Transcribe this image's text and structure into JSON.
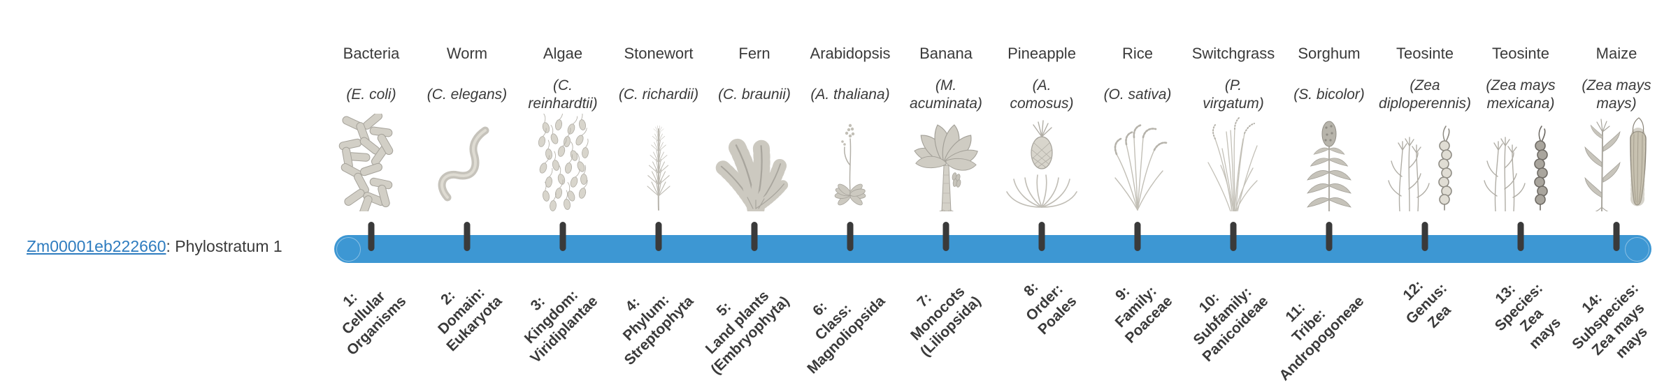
{
  "gene_label": {
    "id": "Zm00001eb222660",
    "rest": ": Phylostratum 1"
  },
  "colors": {
    "bar": "#3d97d3",
    "tick": "#3a3a3a",
    "link": "#2e7cbf",
    "text": "#3a3a3a"
  },
  "timeline": {
    "tick_count": 14
  },
  "organisms": [
    {
      "name": "Bacteria",
      "sci": "(E. coli)",
      "stratum": "1:\nCellular\nOrganisms",
      "icon": "#icon-bacteria",
      "image_name": "bacteria-illustration"
    },
    {
      "name": "Worm",
      "sci": "(C. elegans)",
      "stratum": "2:\nDomain:\nEukaryota",
      "icon": "#icon-worm",
      "image_name": "worm-illustration"
    },
    {
      "name": "Algae",
      "sci": "(C.\nreinhardtii)",
      "stratum": "3:\nKingdom:\nViridiplantae",
      "icon": "#icon-algae",
      "image_name": "algae-illustration"
    },
    {
      "name": "Stonewort",
      "sci": "(C. richardii)",
      "stratum": "4:\nPhylum:\nStreptophyta",
      "icon": "#icon-stonewort",
      "image_name": "stonewort-illustration"
    },
    {
      "name": "Fern",
      "sci": "(C. braunii)",
      "stratum": "5:\nLand plants\n(Embryophyta)",
      "icon": "#icon-fern",
      "image_name": "fern-illustration"
    },
    {
      "name": "Arabidopsis",
      "sci": "(A. thaliana)",
      "stratum": "6:\nClass:\nMagnoliopsida",
      "icon": "#icon-arabidopsis",
      "image_name": "arabidopsis-illustration"
    },
    {
      "name": "Banana",
      "sci": "(M.\nacuminata)",
      "stratum": "7:\nMonocots\n(Liliopsida)",
      "icon": "#icon-banana",
      "image_name": "banana-illustration"
    },
    {
      "name": "Pineapple",
      "sci": "(A.\ncomosus)",
      "stratum": "8:\nOrder:\nPoales",
      "icon": "#icon-pineapple",
      "image_name": "pineapple-illustration"
    },
    {
      "name": "Rice",
      "sci": "(O. sativa)",
      "stratum": "9:\nFamily:\nPoaceae",
      "icon": "#icon-rice",
      "image_name": "rice-illustration"
    },
    {
      "name": "Switchgrass",
      "sci": "(P.\nvirgatum)",
      "stratum": "10:\nSubfamily:\nPanicoideae",
      "icon": "#icon-switchgrass",
      "image_name": "switchgrass-illustration"
    },
    {
      "name": "Sorghum",
      "sci": "(S. bicolor)",
      "stratum": "11:\nTribe:\nAndropogoneae",
      "icon": "#icon-sorghum",
      "image_name": "sorghum-illustration"
    },
    {
      "name": "Teosinte",
      "sci": "(Zea\ndiploperennis)",
      "stratum": "12:\nGenus:\nZea",
      "icon": "#icon-teosinte-d",
      "image_name": "teosinte-diploperennis-illustration"
    },
    {
      "name": "Teosinte",
      "sci": "(Zea mays\nmexicana)",
      "stratum": "13:\nSpecies:\nZea\nmays",
      "icon": "#icon-teosinte-m",
      "image_name": "teosinte-mexicana-illustration"
    },
    {
      "name": "Maize",
      "sci": "(Zea mays\nmays)",
      "stratum": "14:\nSubspecies:\nZea mays\nmays",
      "icon": "#icon-maize",
      "image_name": "maize-illustration"
    }
  ]
}
